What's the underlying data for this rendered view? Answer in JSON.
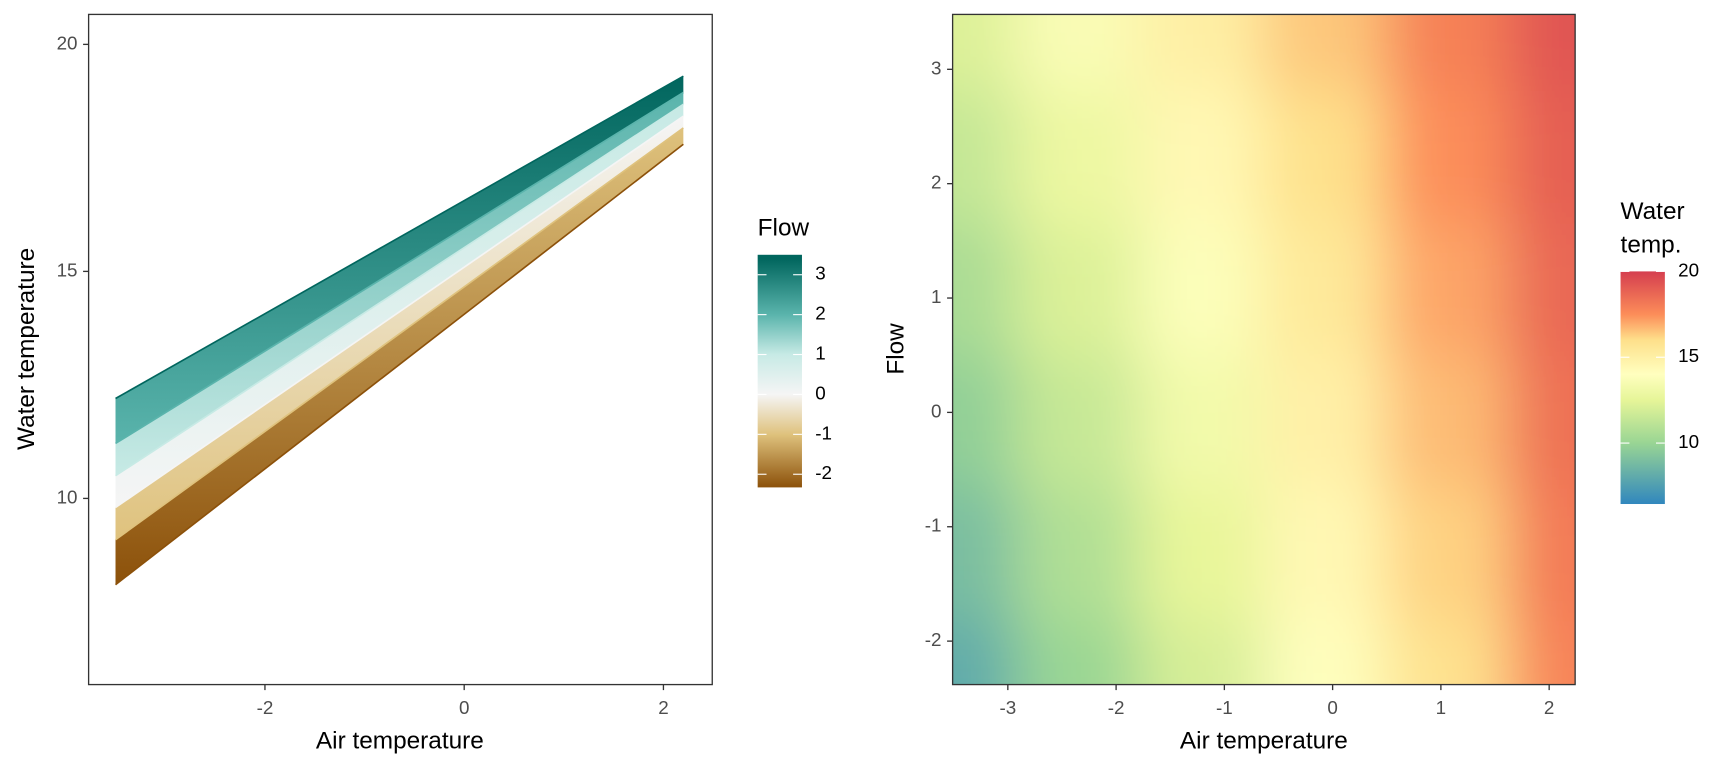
{
  "chart_data": [
    {
      "type": "line",
      "x_label": "Air temperature",
      "y_label": "Water temperature",
      "x": [
        -3.5,
        2.2
      ],
      "lines": [
        {
          "flow": -2.4,
          "color": "#8c510a",
          "values": [
            8.1,
            17.8
          ]
        },
        {
          "flow": -1,
          "color": "#dfc27d",
          "values": [
            9.09,
            18.16
          ]
        },
        {
          "flow": 0,
          "color": "#f5f5f5",
          "values": [
            9.8,
            18.42
          ]
        },
        {
          "flow": 1,
          "color": "#c7eae5",
          "values": [
            10.5,
            18.68
          ]
        },
        {
          "flow": 2,
          "color": "#5ab4ac",
          "values": [
            11.21,
            18.94
          ]
        },
        {
          "flow": 3.4,
          "color": "#01665e",
          "values": [
            12.2,
            19.3
          ]
        }
      ],
      "xlim": [
        -3.77,
        2.49
      ],
      "ylim": [
        5.9,
        20.66
      ],
      "xticks": [
        -2,
        0,
        2
      ],
      "yticks": [
        10,
        15,
        20
      ],
      "grid": false,
      "colorbar": {
        "title": "Flow",
        "lim": [
          -2.33,
          3.5
        ],
        "ticks": [
          -2,
          -1,
          0,
          1,
          2,
          3
        ]
      }
    },
    {
      "type": "heatmap",
      "x_label": "Air temperature",
      "y_label": "Flow",
      "x": [
        -3.5,
        -2.36,
        -1.22,
        -0.08,
        1.06,
        2.2
      ],
      "y": [
        -2.4,
        -1.24,
        -0.08,
        1.08,
        2.24,
        3.4
      ],
      "z": [
        [
          8.1,
          10.04,
          11.98,
          13.92,
          15.86,
          17.8
        ],
        [
          8.92,
          10.76,
          12.59,
          14.43,
          16.26,
          18.1
        ],
        [
          9.74,
          11.47,
          13.2,
          14.94,
          16.67,
          18.4
        ],
        [
          10.56,
          12.19,
          13.82,
          15.44,
          17.07,
          18.7
        ],
        [
          11.38,
          12.9,
          14.43,
          15.95,
          17.48,
          19.0
        ],
        [
          12.2,
          13.62,
          15.04,
          16.46,
          17.88,
          19.3
        ]
      ],
      "xlim": [
        -3.51,
        2.24
      ],
      "ylim": [
        -2.38,
        3.48
      ],
      "xticks": [
        -3,
        -2,
        -1,
        0,
        1,
        2
      ],
      "yticks": [
        -2,
        -1,
        0,
        1,
        2,
        3
      ],
      "grid": false,
      "colorscale": [
        [
          6.5,
          "#3288bd"
        ],
        [
          10,
          "#99d594"
        ],
        [
          12.5,
          "#e6f598"
        ],
        [
          14,
          "#ffffbf"
        ],
        [
          16,
          "#fee08b"
        ],
        [
          17.5,
          "#fc8d59"
        ],
        [
          20,
          "#d53e4f"
        ]
      ],
      "colorbar": {
        "title": [
          "Water",
          "temp."
        ],
        "lim": [
          6.45,
          20
        ],
        "ticks": [
          10,
          15,
          20
        ]
      }
    }
  ]
}
